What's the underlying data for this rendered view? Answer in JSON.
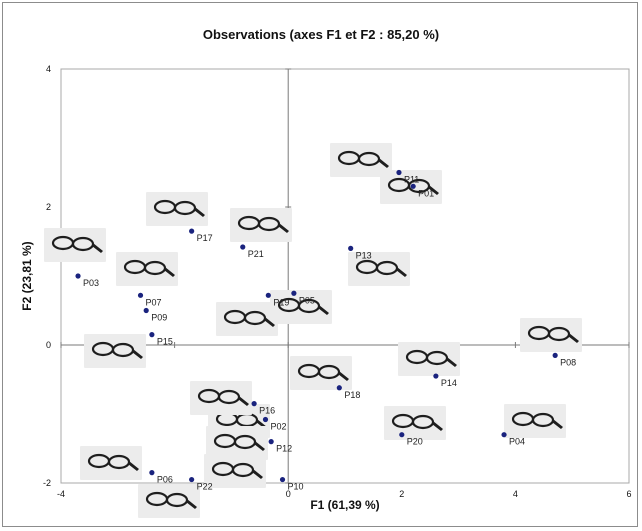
{
  "chart_data": {
    "type": "scatter",
    "title": "Observations (axes F1 et F2 : 85,20 %)",
    "xlabel": "F1 (61,39 %)",
    "ylabel": "F2 (23,81 %)",
    "xlim": [
      -4,
      6
    ],
    "ylim": [
      -2,
      4
    ],
    "xticks": [
      "-4",
      "-2",
      "0",
      "2",
      "4",
      "6"
    ],
    "yticks": [
      "-2",
      "0",
      "2",
      "4"
    ],
    "point_color": "#1a237e",
    "legend": "none",
    "grid": false,
    "points": [
      {
        "label": "P01",
        "x": 2.2,
        "y": 2.3
      },
      {
        "label": "P02",
        "x": -0.4,
        "y": -1.08
      },
      {
        "label": "P03",
        "x": -3.7,
        "y": 1.0
      },
      {
        "label": "P04",
        "x": 3.8,
        "y": -1.3
      },
      {
        "label": "P05",
        "x": 0.1,
        "y": 0.75
      },
      {
        "label": "P06",
        "x": -2.4,
        "y": -1.85
      },
      {
        "label": "P07",
        "x": -2.6,
        "y": 0.72
      },
      {
        "label": "P08",
        "x": 4.7,
        "y": -0.15
      },
      {
        "label": "P09",
        "x": -2.5,
        "y": 0.5
      },
      {
        "label": "P10",
        "x": -0.1,
        "y": -1.95
      },
      {
        "label": "P11",
        "x": 1.95,
        "y": 2.5
      },
      {
        "label": "P12",
        "x": -0.3,
        "y": -1.4
      },
      {
        "label": "P13",
        "x": 1.1,
        "y": 1.4
      },
      {
        "label": "P14",
        "x": 2.6,
        "y": -0.45
      },
      {
        "label": "P15",
        "x": -2.4,
        "y": 0.15
      },
      {
        "label": "P16",
        "x": -0.6,
        "y": -0.85
      },
      {
        "label": "P17",
        "x": -1.7,
        "y": 1.65
      },
      {
        "label": "P18",
        "x": 0.9,
        "y": -0.62
      },
      {
        "label": "P19",
        "x": -0.35,
        "y": 0.72
      },
      {
        "label": "P20",
        "x": 2.0,
        "y": -1.3
      },
      {
        "label": "P21",
        "x": -0.8,
        "y": 1.42
      },
      {
        "label": "P22",
        "x": -1.7,
        "y": -1.95
      }
    ],
    "glasses_images": [
      {
        "name": "glasses-p01"
      },
      {
        "name": "glasses-p02"
      },
      {
        "name": "glasses-p03"
      },
      {
        "name": "glasses-p04"
      },
      {
        "name": "glasses-p05"
      },
      {
        "name": "glasses-p06"
      },
      {
        "name": "glasses-p07"
      },
      {
        "name": "glasses-p08"
      },
      {
        "name": "glasses-p10"
      },
      {
        "name": "glasses-p11"
      },
      {
        "name": "glasses-p12"
      },
      {
        "name": "glasses-p13"
      },
      {
        "name": "glasses-p14"
      },
      {
        "name": "glasses-p15"
      },
      {
        "name": "glasses-p16"
      },
      {
        "name": "glasses-p17"
      },
      {
        "name": "glasses-p18"
      },
      {
        "name": "glasses-p19"
      },
      {
        "name": "glasses-p20"
      },
      {
        "name": "glasses-p21"
      },
      {
        "name": "glasses-p22"
      }
    ]
  }
}
